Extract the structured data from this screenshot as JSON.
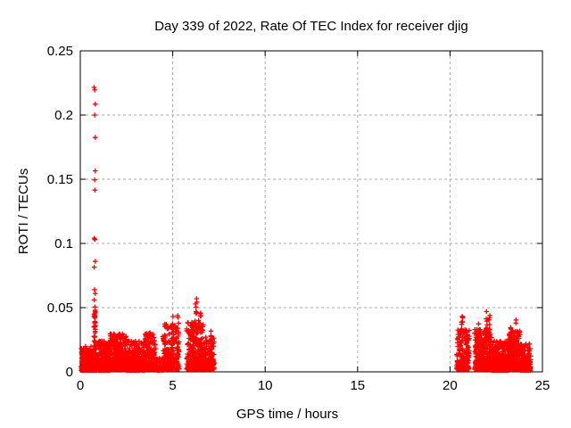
{
  "page": {
    "background": "#ffffff"
  },
  "chart_data": {
    "type": "scatter",
    "title": "Day 339 of 2022, Rate Of TEC Index for receiver djig",
    "xlabel": "GPS time / hours",
    "ylabel": "ROTI / TECUs",
    "xlim": [
      0,
      25
    ],
    "ylim": [
      0,
      0.25
    ],
    "xticks": [
      0,
      5,
      10,
      15,
      20,
      25
    ],
    "xtick_labels": [
      "0",
      "5",
      "10",
      "15",
      "20",
      "25"
    ],
    "yticks": [
      0,
      0.05,
      0.1,
      0.15,
      0.2,
      0.25
    ],
    "ytick_labels": [
      "0",
      "0.05",
      "0.1",
      "0.15",
      "0.2",
      "0.25"
    ],
    "grid": true,
    "legend": "none",
    "marker": "plus",
    "marker_color": "#ff0000",
    "grid_color": "#aaaaaa",
    "axis_color": "#000000",
    "background_color": "#ffffff",
    "seed": 20221205,
    "outlier_points": [
      [
        0.75,
        0.2215
      ],
      [
        0.78,
        0.2195
      ],
      [
        0.81,
        0.2085
      ],
      [
        0.78,
        0.2
      ],
      [
        0.81,
        0.1825
      ],
      [
        0.81,
        0.1565
      ],
      [
        0.78,
        0.1495
      ],
      [
        0.79,
        0.1415
      ],
      [
        0.76,
        0.104
      ],
      [
        0.79,
        0.103
      ],
      [
        0.81,
        0.086
      ],
      [
        0.76,
        0.0815
      ],
      [
        0.77,
        0.064
      ],
      [
        0.81,
        0.061
      ],
      [
        0.76,
        0.056
      ],
      [
        0.79,
        0.0505
      ]
    ],
    "bands": [
      {
        "x0": 0.05,
        "x1": 0.7,
        "n": 250,
        "y0": 0.001,
        "y1": 0.02,
        "p": 2.2
      },
      {
        "x0": 0.7,
        "x1": 1.6,
        "n": 330,
        "y0": 0.001,
        "y1": 0.024,
        "p": 2.2
      },
      {
        "x0": 1.6,
        "x1": 2.5,
        "n": 320,
        "y0": 0.002,
        "y1": 0.03,
        "p": 2.2
      },
      {
        "x0": 2.5,
        "x1": 3.5,
        "n": 330,
        "y0": 0.001,
        "y1": 0.024,
        "p": 2.2
      },
      {
        "x0": 3.5,
        "x1": 4.1,
        "n": 210,
        "y0": 0.002,
        "y1": 0.031,
        "p": 2.2
      },
      {
        "x0": 4.1,
        "x1": 4.45,
        "n": 45,
        "y0": 0.001,
        "y1": 0.011,
        "p": 2.0
      },
      {
        "x0": 4.45,
        "x1": 5.35,
        "n": 240,
        "y0": 0.002,
        "y1": 0.038,
        "p": 2.4
      },
      {
        "x0": 5.75,
        "x1": 6.65,
        "n": 320,
        "y0": 0.002,
        "y1": 0.04,
        "p": 2.4
      },
      {
        "x0": 6.65,
        "x1": 7.25,
        "n": 150,
        "y0": 0.002,
        "y1": 0.027,
        "p": 2.2
      },
      {
        "x0": 20.35,
        "x1": 21.05,
        "n": 230,
        "y0": 0.002,
        "y1": 0.033,
        "p": 2.2
      },
      {
        "x0": 21.33,
        "x1": 22.25,
        "n": 330,
        "y0": 0.002,
        "y1": 0.033,
        "p": 2.3
      },
      {
        "x0": 22.25,
        "x1": 23.15,
        "n": 330,
        "y0": 0.001,
        "y1": 0.024,
        "p": 2.2
      },
      {
        "x0": 23.15,
        "x1": 23.8,
        "n": 270,
        "y0": 0.002,
        "y1": 0.032,
        "p": 2.0
      },
      {
        "x0": 23.8,
        "x1": 24.37,
        "n": 180,
        "y0": 0.001,
        "y1": 0.022,
        "p": 2.2
      }
    ],
    "spikes": [
      {
        "x": 0.78,
        "y0": 0.018,
        "y1": 0.048,
        "n": 30
      },
      {
        "x": 1.85,
        "y0": 0.018,
        "y1": 0.03,
        "n": 8
      },
      {
        "x": 3.7,
        "y0": 0.015,
        "y1": 0.031,
        "n": 8
      },
      {
        "x": 4.6,
        "y0": 0.015,
        "y1": 0.039,
        "n": 8
      },
      {
        "x": 5.0,
        "y0": 0.018,
        "y1": 0.046,
        "n": 8
      },
      {
        "x": 5.3,
        "y0": 0.028,
        "y1": 0.05,
        "n": 5
      },
      {
        "x": 6.27,
        "y0": 0.022,
        "y1": 0.059,
        "n": 12
      },
      {
        "x": 6.5,
        "y0": 0.018,
        "y1": 0.049,
        "n": 10
      },
      {
        "x": 7.05,
        "y0": 0.008,
        "y1": 0.032,
        "n": 12
      },
      {
        "x": 20.65,
        "y0": 0.012,
        "y1": 0.0465,
        "n": 16
      },
      {
        "x": 21.57,
        "y0": 0.01,
        "y1": 0.0375,
        "n": 12
      },
      {
        "x": 21.97,
        "y0": 0.015,
        "y1": 0.049,
        "n": 16
      },
      {
        "x": 22.12,
        "y0": 0.018,
        "y1": 0.0455,
        "n": 10
      },
      {
        "x": 22.54,
        "y0": 0.012,
        "y1": 0.0355,
        "n": 10
      },
      {
        "x": 23.3,
        "y0": 0.016,
        "y1": 0.036,
        "n": 12
      },
      {
        "x": 23.56,
        "y0": 0.02,
        "y1": 0.0514,
        "n": 8
      },
      {
        "x": 23.7,
        "y0": 0.014,
        "y1": 0.033,
        "n": 8
      }
    ]
  }
}
